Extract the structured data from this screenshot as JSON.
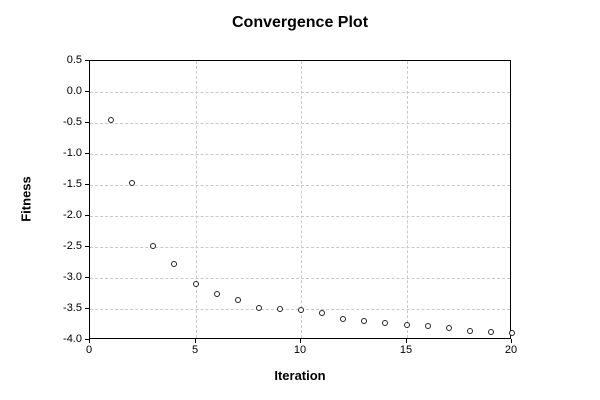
{
  "chart_data": {
    "type": "scatter",
    "title": "Convergence Plot",
    "xlabel": "Iteration",
    "ylabel": "Fitness",
    "xlim": [
      0,
      20
    ],
    "ylim": [
      -4.0,
      0.5
    ],
    "x_tick_labels": [
      "0",
      "5",
      "10",
      "15",
      "20"
    ],
    "y_tick_labels": [
      "0.5",
      "0.0",
      "-0.5",
      "-1.0",
      "-1.5",
      "-2.0",
      "-2.5",
      "-3.0",
      "-3.5",
      "-4.0"
    ],
    "grid": "dashed",
    "legend_position": "none",
    "marker": "open-circle",
    "series": [
      {
        "name": "Fitness",
        "x": [
          1,
          2,
          3,
          4,
          5,
          6,
          7,
          8,
          9,
          10,
          11,
          12,
          13,
          14,
          15,
          16,
          17,
          18,
          19,
          20
        ],
        "y": [
          -0.45,
          -1.46,
          -2.49,
          -2.77,
          -3.09,
          -3.26,
          -3.36,
          -3.48,
          -3.5,
          -3.52,
          -3.57,
          -3.66,
          -3.7,
          -3.73,
          -3.75,
          -3.78,
          -3.8,
          -3.85,
          -3.87,
          -3.89
        ]
      }
    ],
    "colors": {
      "background": "#ffffff",
      "axis": "#000000",
      "grid": "#c9c9c9",
      "marker_stroke": "#222222",
      "text": "#000000"
    }
  }
}
